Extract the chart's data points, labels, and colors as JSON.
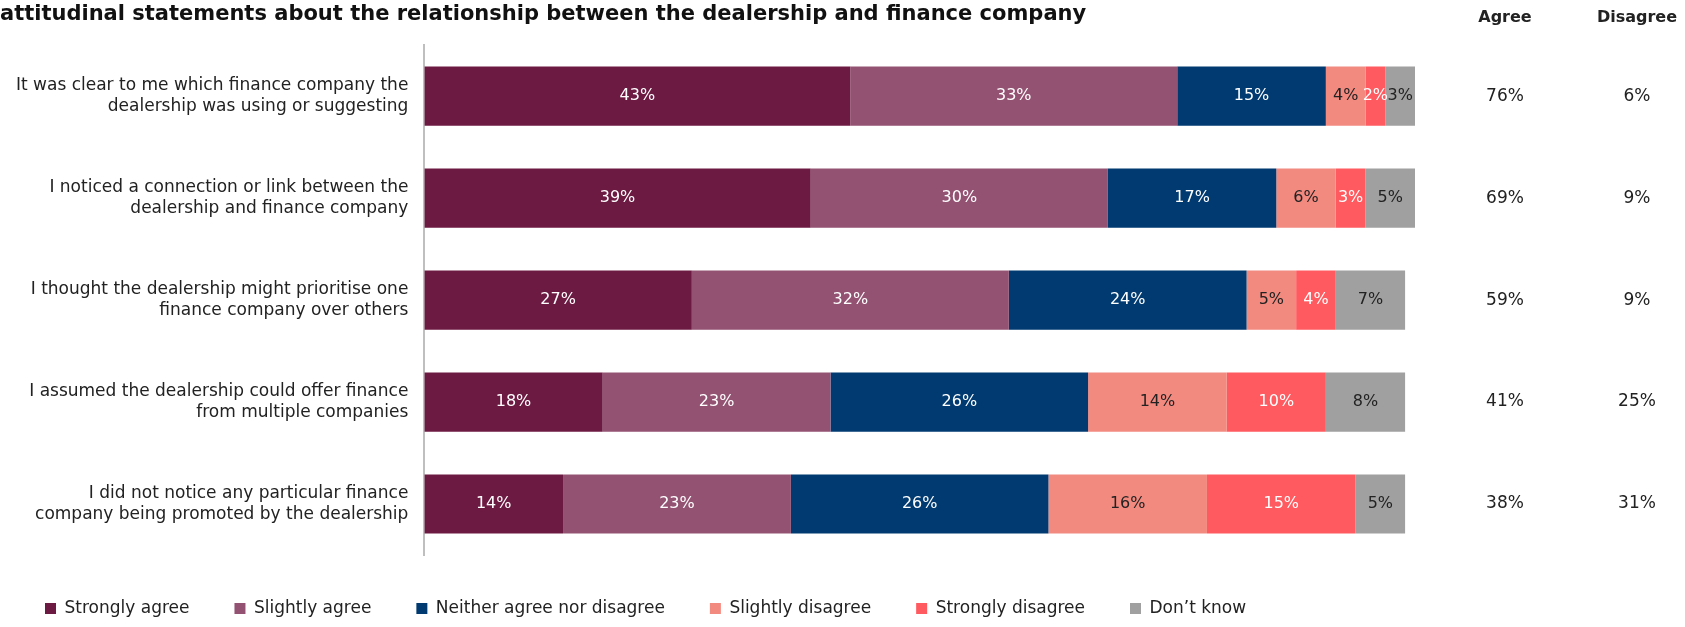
{
  "chart_data": {
    "type": "bar",
    "orientation": "horizontal",
    "stacked": true,
    "title": "attitudinal statements about the relationship between the dealership and finance company",
    "categories": [
      "It was clear to me which finance company the dealership was using or suggesting",
      "I noticed a connection or link between the dealership and finance company",
      "I thought the dealership might prioritise one finance company over others",
      "I assumed the dealership could offer finance from multiple companies",
      "I did not notice any particular finance company being promoted by the dealership"
    ],
    "series": [
      {
        "name": "Strongly agree",
        "color": "#6d1a42",
        "values": [
          43,
          39,
          27,
          18,
          14
        ],
        "value_labels": [
          "43%",
          "39%",
          "27%",
          "18%",
          "14%"
        ]
      },
      {
        "name": "Slightly agree",
        "color": "#935272",
        "values": [
          33,
          30,
          32,
          23,
          23
        ],
        "value_labels": [
          "33%",
          "30%",
          "32%",
          "23%",
          "23%"
        ]
      },
      {
        "name": "Neither agree nor disagree",
        "color": "#003a70",
        "values": [
          15,
          17,
          24,
          26,
          26
        ],
        "value_labels": [
          "15%",
          "17%",
          "24%",
          "26%",
          "26%"
        ]
      },
      {
        "name": "Slightly disagree",
        "color": "#f28a80",
        "values": [
          4,
          6,
          5,
          14,
          16
        ],
        "value_labels": [
          "4%",
          "6%",
          "5%",
          "14%",
          "16%"
        ]
      },
      {
        "name": "Strongly disagree",
        "color": "#ff5a5f",
        "values": [
          2,
          3,
          4,
          10,
          15
        ],
        "value_labels": [
          "2%",
          "3%",
          "4%",
          "10%",
          "15%"
        ]
      },
      {
        "name": "Don’t know",
        "color": "#a0a0a0",
        "values": [
          3,
          5,
          7,
          8,
          5
        ],
        "value_labels": [
          "3%",
          "5%",
          "7%",
          "8%",
          "5%"
        ]
      }
    ],
    "tick_labels": "y",
    "grid": false,
    "legend": "bottom",
    "annotations": [
      "Agree",
      "Disagree",
      "76%",
      "6%",
      "69%",
      "9%",
      "59%",
      "9%",
      "41%",
      "25%",
      "38%",
      "31%"
    ]
  }
}
